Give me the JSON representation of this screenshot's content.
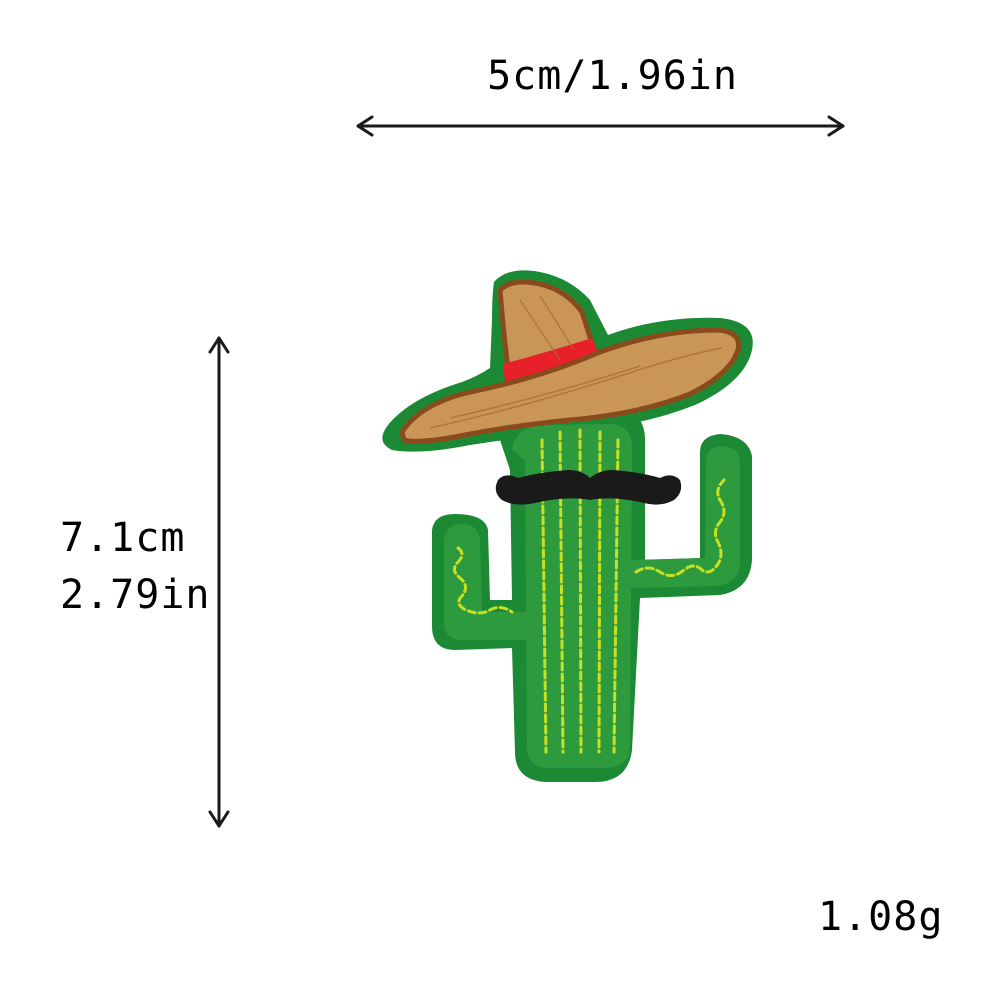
{
  "dimensions": {
    "width_label": "5cm/1.96in",
    "height_label_cm": "7.1cm",
    "height_label_in": "2.79in"
  },
  "weight_label": "1.08g",
  "patch": {
    "icon": "cactus-sombrero-patch",
    "colors": {
      "felt_border": "#1c8a34",
      "cactus_body": "#2e9a3e",
      "stitch": "#c8e023",
      "hat_fill": "#c99658",
      "hat_outline": "#8a4a1c",
      "hat_band": "#e8202a",
      "mustache": "#1a1a1a"
    }
  }
}
